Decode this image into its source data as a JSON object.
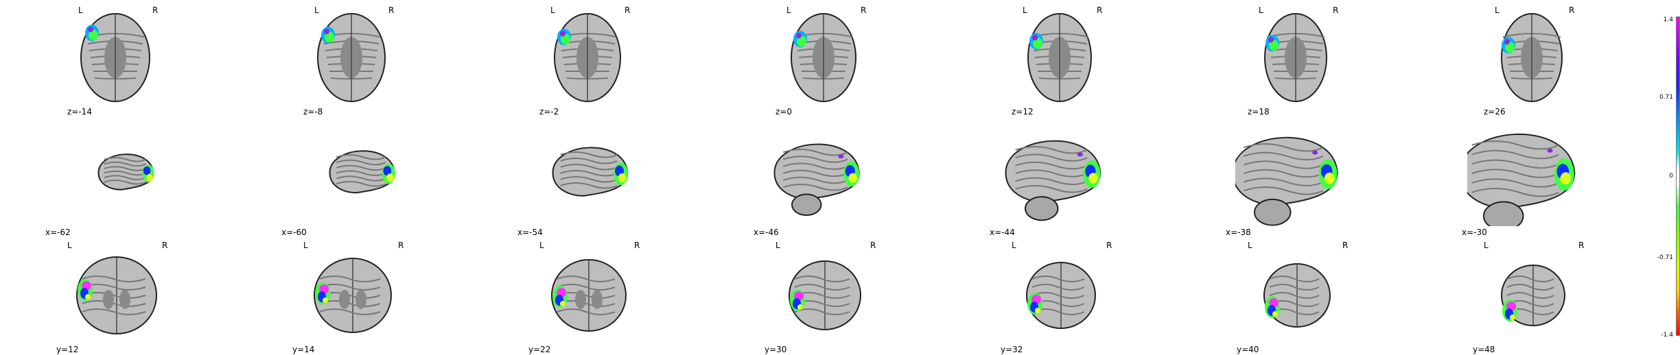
{
  "orientation": {
    "left": "L",
    "right": "R"
  },
  "rows": [
    {
      "view": "axial",
      "labels": [
        "z=-14",
        "z=-8",
        "z=-2",
        "z=0",
        "z=12",
        "z=18",
        "z=26"
      ]
    },
    {
      "view": "sagittal",
      "labels": [
        "x=-62",
        "x=-60",
        "x=-54",
        "x=-46",
        "x=-44",
        "x=-38",
        "x=-30"
      ]
    },
    {
      "view": "coronal",
      "labels": [
        "y=12",
        "y=14",
        "y=22",
        "y=30",
        "y=32",
        "y=40",
        "y=48"
      ]
    }
  ],
  "colorbar": {
    "ticks": [
      "1.4",
      "0.71",
      "0",
      "-0.71",
      "-1.4"
    ]
  }
}
